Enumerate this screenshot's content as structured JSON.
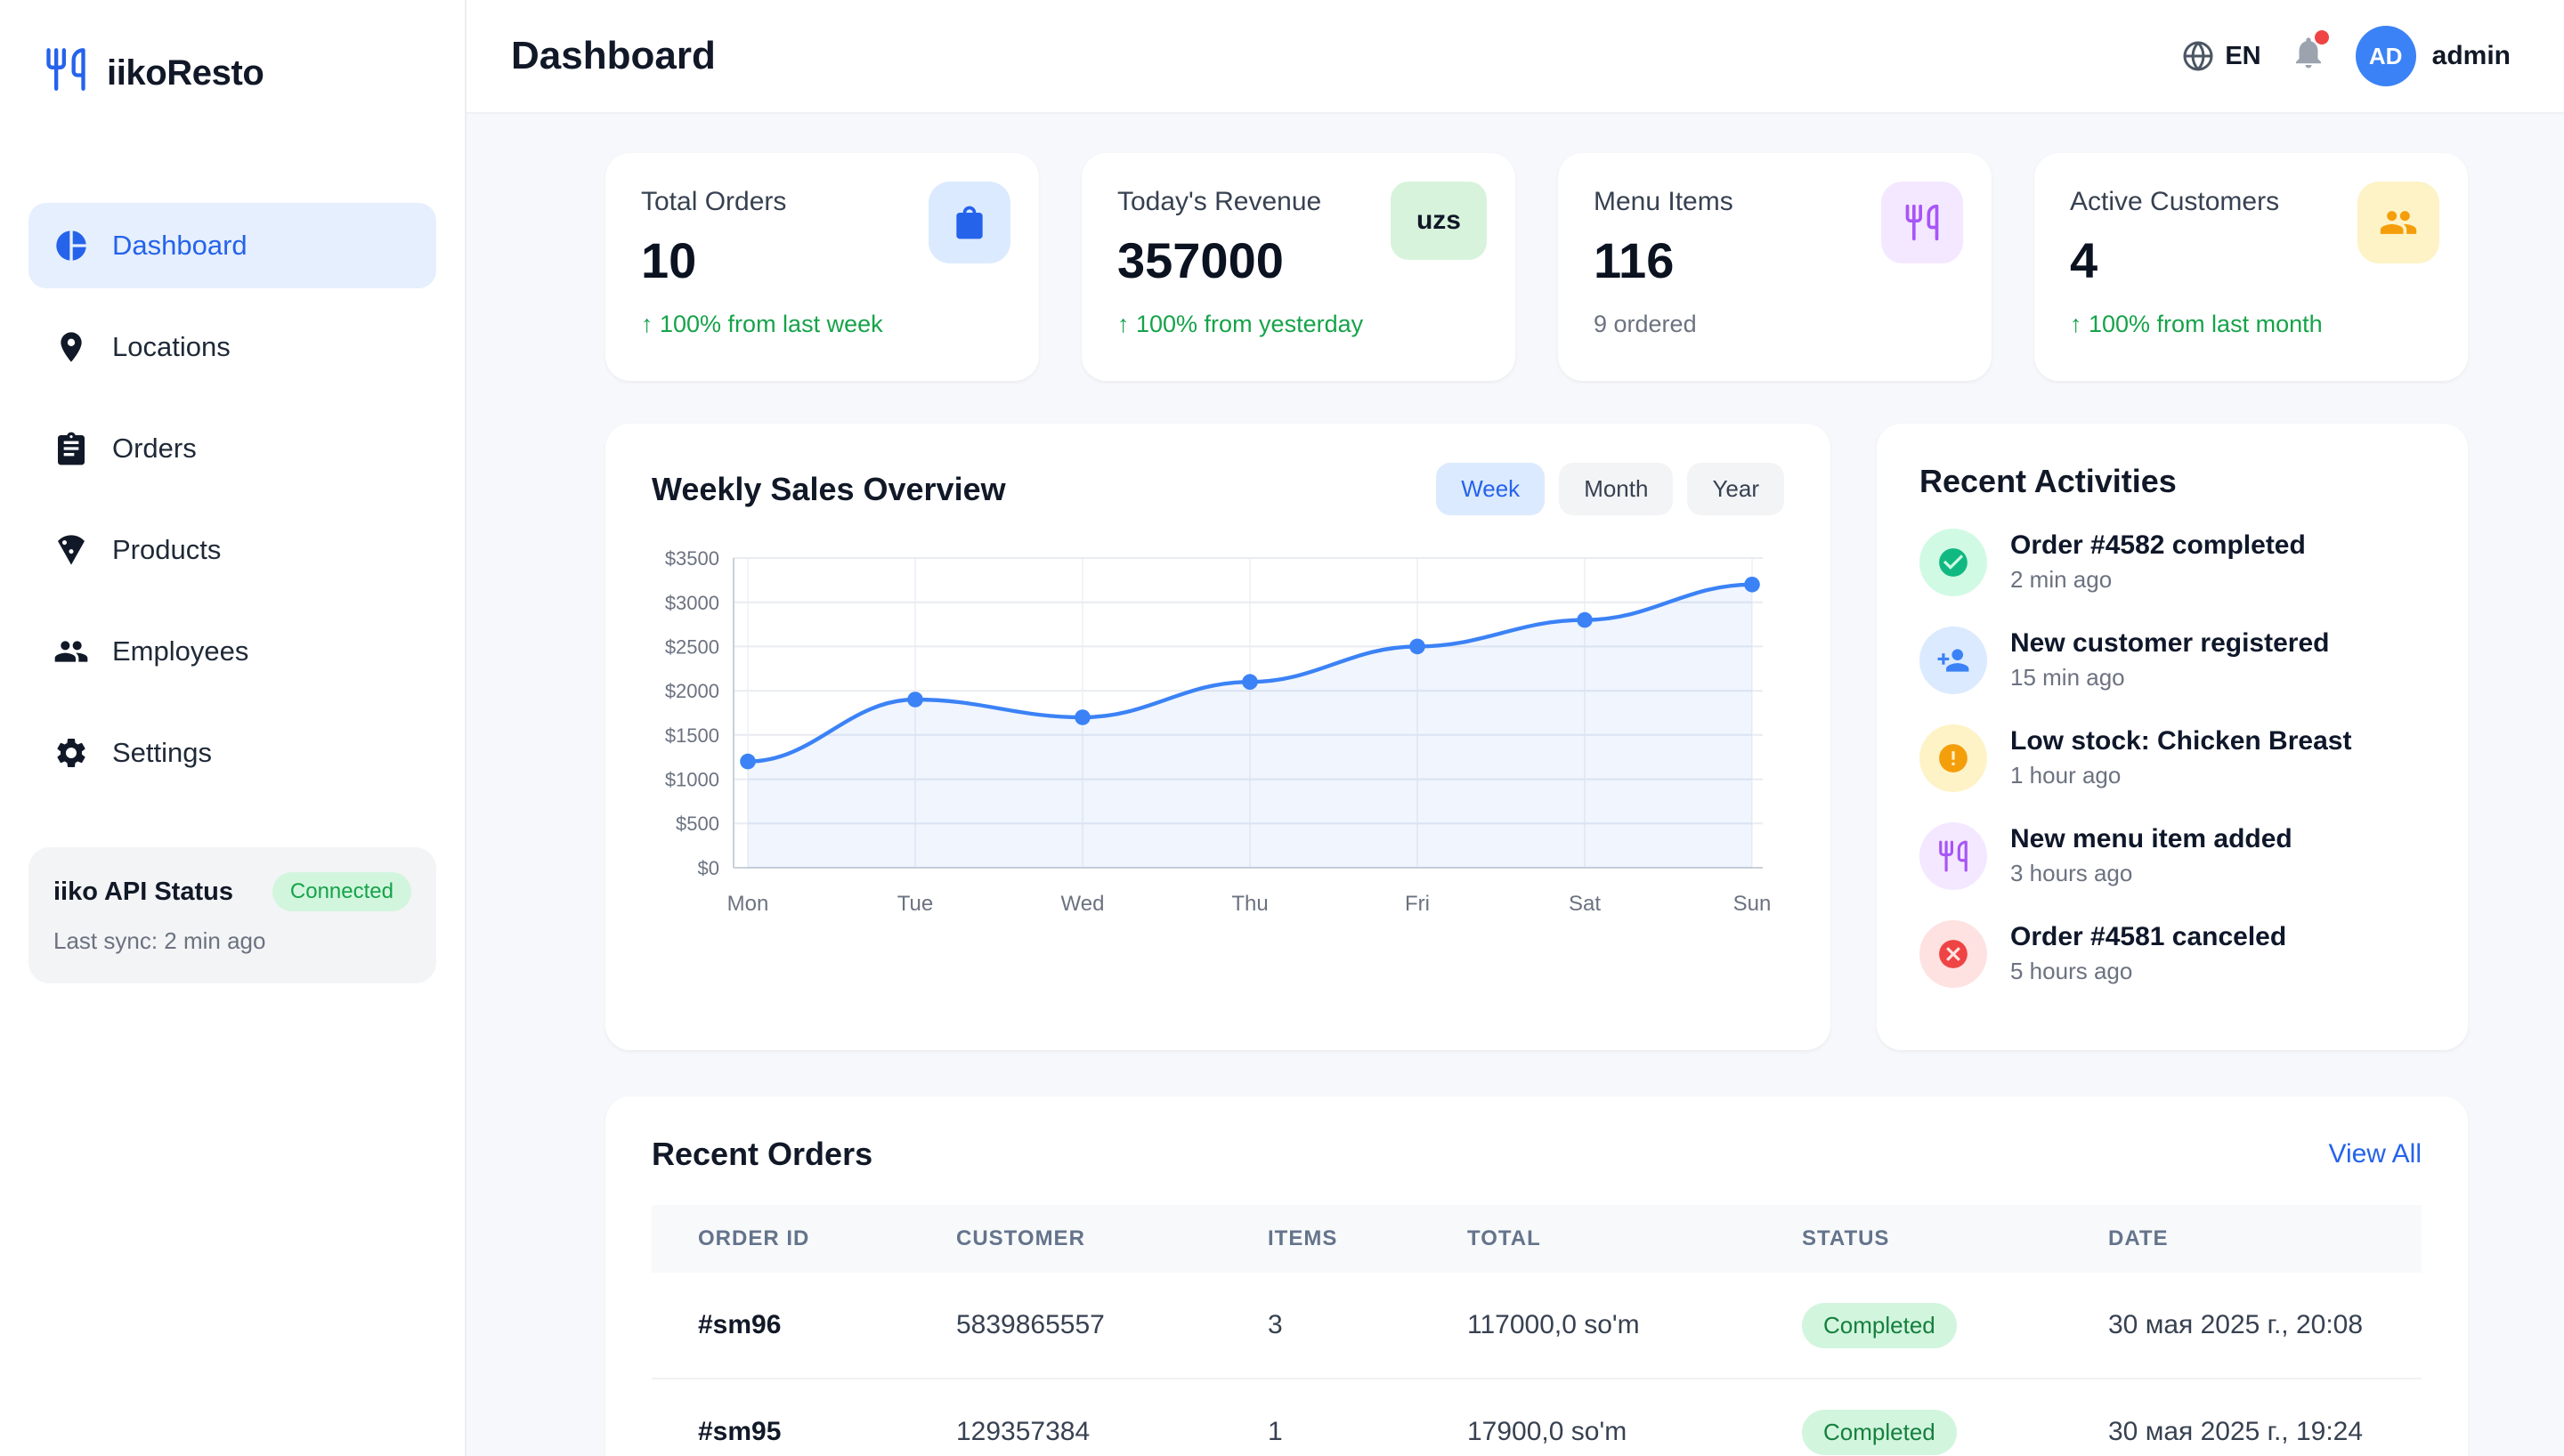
{
  "app": {
    "name": "iikoResto",
    "logo_icon": "utensils-icon",
    "accent_color": "#2563eb"
  },
  "header": {
    "title": "Dashboard",
    "language": "EN",
    "language_icon": "globe-icon",
    "notification_icon": "bell-icon",
    "has_notification": true,
    "user": {
      "initials": "AD",
      "name": "admin"
    }
  },
  "sidebar": {
    "items": [
      {
        "label": "Dashboard",
        "icon": "pie-chart-icon",
        "active": true
      },
      {
        "label": "Locations",
        "icon": "map-pin-icon",
        "active": false
      },
      {
        "label": "Orders",
        "icon": "clipboard-icon",
        "active": false
      },
      {
        "label": "Products",
        "icon": "pizza-icon",
        "active": false
      },
      {
        "label": "Employees",
        "icon": "people-icon",
        "active": false
      },
      {
        "label": "Settings",
        "icon": "gear-icon",
        "active": false
      }
    ],
    "api_status": {
      "label": "iiko API Status",
      "badge": "Connected",
      "badge_color": "#16a34a",
      "last_sync": "Last sync: 2 min ago"
    }
  },
  "stats": [
    {
      "label": "Total Orders",
      "value": "10",
      "note": "↑ 100% from last week",
      "note_type": "positive",
      "icon": "shopping-bag-icon",
      "icon_bg": "#dbeafe",
      "icon_color": "#2563eb"
    },
    {
      "label": "Today's Revenue",
      "value": "357000",
      "note": "↑ 100% from yesterday",
      "note_type": "positive",
      "badge": "uzs",
      "icon_bg": "#d8f3dc"
    },
    {
      "label": "Menu Items",
      "value": "116",
      "note": "9 ordered",
      "note_type": "neutral",
      "icon": "utensils-icon",
      "icon_bg": "#f3e8ff",
      "icon_color": "#a855f7"
    },
    {
      "label": "Active Customers",
      "value": "4",
      "note": "↑ 100% from last month",
      "note_type": "positive",
      "icon": "people-icon",
      "icon_bg": "#fef3c7",
      "icon_color": "#f59e0b"
    }
  ],
  "chart_card": {
    "title": "Weekly Sales Overview",
    "tabs": [
      "Week",
      "Month",
      "Year"
    ],
    "active_tab": "Week"
  },
  "chart_data": {
    "type": "line",
    "title": "Weekly Sales Overview",
    "x": [
      "Mon",
      "Tue",
      "Wed",
      "Thu",
      "Fri",
      "Sat",
      "Sun"
    ],
    "series": [
      {
        "name": "Sales",
        "values": [
          1200,
          1900,
          1700,
          2100,
          2500,
          2800,
          3200
        ]
      }
    ],
    "ylim": [
      0,
      3500
    ],
    "ytick_step": 500,
    "ytick_prefix": "$",
    "grid": true,
    "legend": false,
    "line_color": "#3b82f6",
    "area_fill": "rgba(59,130,246,0.08)"
  },
  "activities": {
    "title": "Recent Activities",
    "items": [
      {
        "title": "Order #4582 completed",
        "time": "2 min ago",
        "icon": "check-circle-icon",
        "icon_bg": "#d1fae5",
        "icon_color": "#10b981"
      },
      {
        "title": "New customer registered",
        "time": "15 min ago",
        "icon": "person-add-icon",
        "icon_bg": "#dbeafe",
        "icon_color": "#3b82f6"
      },
      {
        "title": "Low stock: Chicken Breast",
        "time": "1 hour ago",
        "icon": "alert-circle-icon",
        "icon_bg": "#fef3c7",
        "icon_color": "#f59e0b"
      },
      {
        "title": "New menu item added",
        "time": "3 hours ago",
        "icon": "utensils-icon",
        "icon_bg": "#f3e8ff",
        "icon_color": "#a855f7"
      },
      {
        "title": "Order #4581 canceled",
        "time": "5 hours ago",
        "icon": "x-circle-icon",
        "icon_bg": "#fee2e2",
        "icon_color": "#ef4444"
      }
    ]
  },
  "orders": {
    "title": "Recent Orders",
    "view_all": "View All",
    "columns": [
      "Order ID",
      "Customer",
      "Items",
      "Total",
      "Status",
      "Date"
    ],
    "rows": [
      {
        "order_id": "#sm96",
        "customer": "5839865557",
        "items": "3",
        "total": "117000,0 so'm",
        "status": "Completed",
        "date": "30 мая 2025 г., 20:08"
      },
      {
        "order_id": "#sm95",
        "customer": "129357384",
        "items": "1",
        "total": "17900,0 so'm",
        "status": "Completed",
        "date": "30 мая 2025 г., 19:24"
      }
    ]
  }
}
